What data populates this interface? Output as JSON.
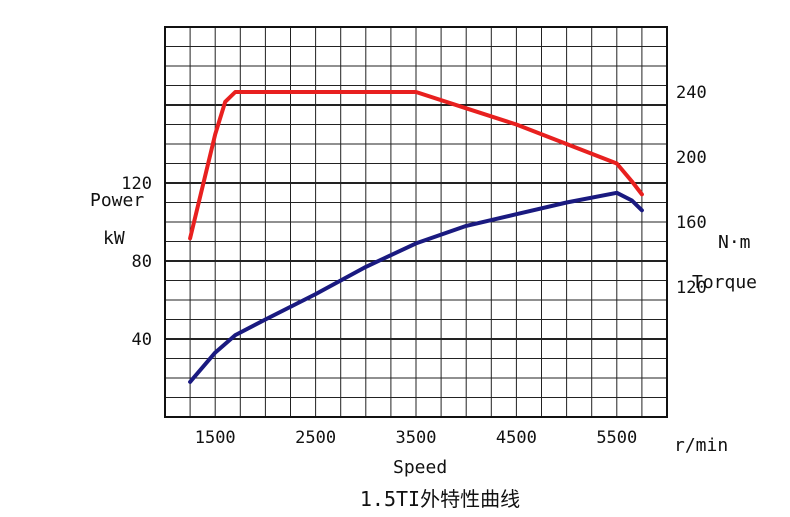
{
  "caption": "1.5TI外特性曲线",
  "chart_data": {
    "type": "line",
    "title": "",
    "x": {
      "label": "Speed",
      "unit_label": "r/min",
      "ticks": [
        1500,
        2500,
        3500,
        4500,
        5500
      ],
      "range": [
        1000,
        6000
      ]
    },
    "y_left": {
      "label": "Power",
      "unit": "kW",
      "ticks": [
        40,
        80,
        120
      ],
      "range": [
        0,
        200
      ]
    },
    "y_right": {
      "label": "Torque",
      "unit": "N·m",
      "ticks": [
        120,
        160,
        200,
        240
      ],
      "range": [
        40,
        280
      ]
    },
    "grid": true,
    "series": [
      {
        "name": "Torque",
        "axis": "right",
        "color": "#e8201f",
        "x": [
          1250,
          1500,
          1600,
          1700,
          2000,
          2500,
          3000,
          3500,
          4000,
          4500,
          5000,
          5500,
          5650,
          5750
        ],
        "values": [
          150,
          214,
          234,
          240,
          240,
          240,
          240,
          240,
          230,
          220,
          208,
          196,
          185,
          177
        ]
      },
      {
        "name": "Power",
        "axis": "left",
        "color": "#1a1a80",
        "x": [
          1250,
          1500,
          1700,
          2000,
          2500,
          3000,
          3500,
          4000,
          4500,
          5000,
          5500,
          5650,
          5750
        ],
        "values": [
          18,
          33,
          42,
          50,
          63,
          77,
          89,
          98,
          104,
          110,
          115,
          111,
          106
        ]
      }
    ]
  }
}
